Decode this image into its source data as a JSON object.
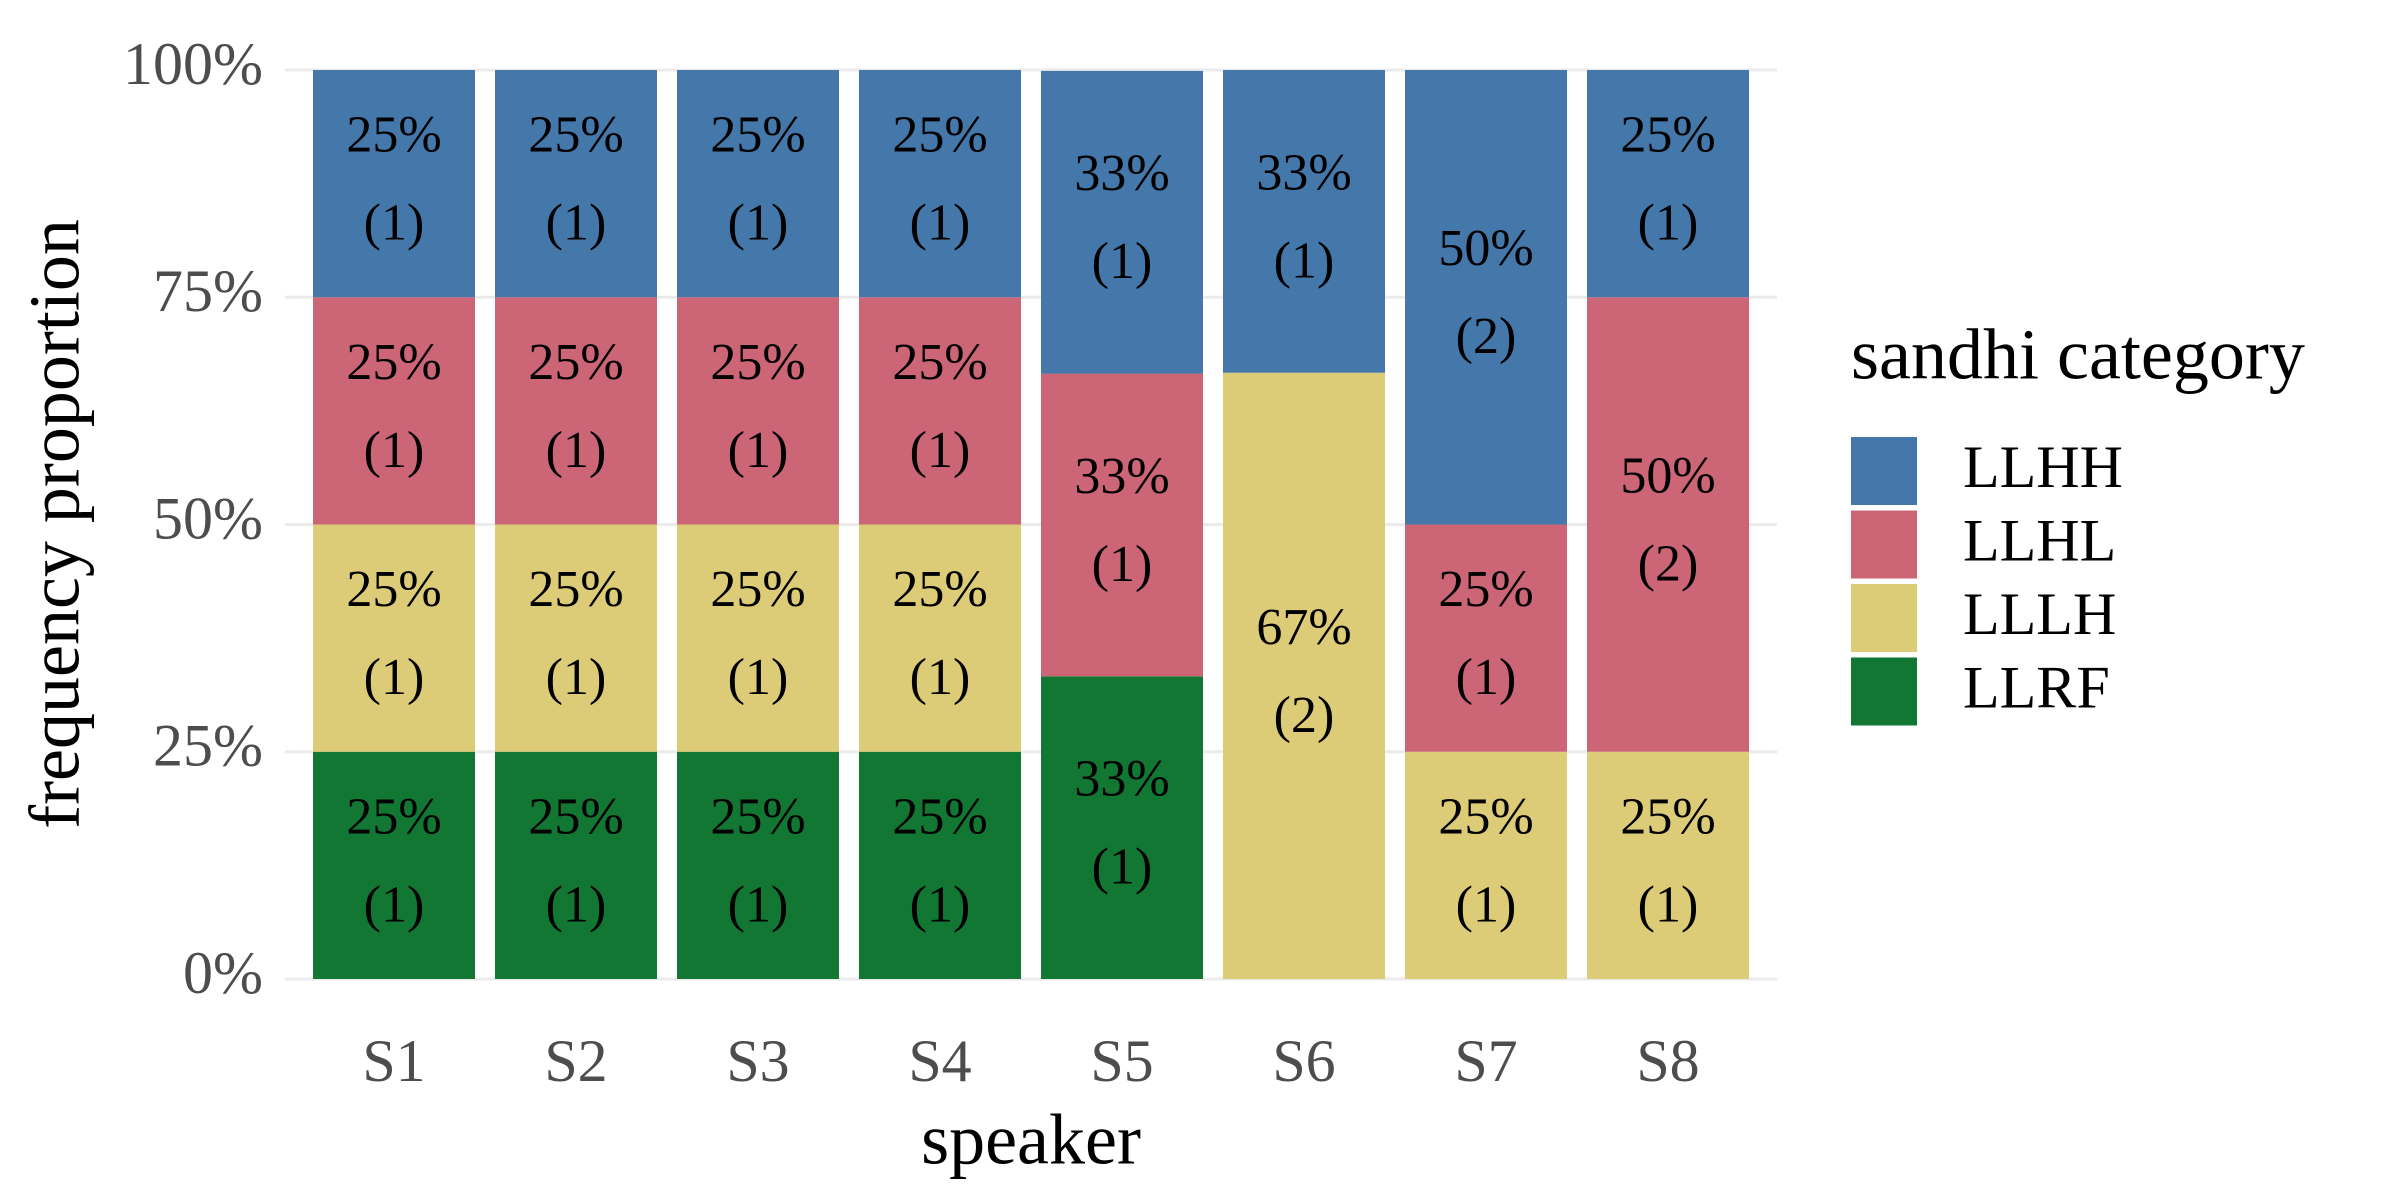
{
  "chart_data": {
    "type": "stacked_bar",
    "x_label": "speaker",
    "y_label": "frequency proportion",
    "legend_title": "sandhi category",
    "categories": [
      "S1",
      "S2",
      "S3",
      "S4",
      "S5",
      "S6",
      "S7",
      "S8"
    ],
    "series": [
      {
        "name": "LLHH",
        "color": "#4477aa",
        "values": [
          25,
          25,
          25,
          25,
          33.3,
          33.3,
          50,
          25
        ],
        "value_labels": [
          "25%",
          "25%",
          "25%",
          "25%",
          "33%",
          "33%",
          "50%",
          "25%"
        ],
        "counts": [
          1,
          1,
          1,
          1,
          1,
          1,
          2,
          1
        ],
        "count_labels": [
          "(1)",
          "(1)",
          "(1)",
          "(1)",
          "(1)",
          "(1)",
          "(2)",
          "(1)"
        ]
      },
      {
        "name": "LLHL",
        "color": "#cc6677",
        "values": [
          25,
          25,
          25,
          25,
          33.3,
          null,
          25,
          50
        ],
        "value_labels": [
          "25%",
          "25%",
          "25%",
          "25%",
          "33%",
          null,
          "25%",
          "50%"
        ],
        "counts": [
          1,
          1,
          1,
          1,
          1,
          null,
          1,
          2
        ],
        "count_labels": [
          "(1)",
          "(1)",
          "(1)",
          "(1)",
          "(1)",
          null,
          "(1)",
          "(2)"
        ]
      },
      {
        "name": "LLLH",
        "color": "#ddcc77",
        "values": [
          25,
          25,
          25,
          25,
          null,
          66.7,
          25,
          25
        ],
        "value_labels": [
          "25%",
          "25%",
          "25%",
          "25%",
          null,
          "67%",
          "25%",
          "25%"
        ],
        "counts": [
          1,
          1,
          1,
          1,
          null,
          2,
          1,
          1
        ],
        "count_labels": [
          "(1)",
          "(1)",
          "(1)",
          "(1)",
          null,
          "(2)",
          "(1)",
          "(1)"
        ]
      },
      {
        "name": "LLRF",
        "color": "#117733",
        "values": [
          25,
          25,
          25,
          25,
          33.3,
          null,
          null,
          null
        ],
        "value_labels": [
          "25%",
          "25%",
          "25%",
          "25%",
          "33%",
          null,
          null,
          null
        ],
        "counts": [
          1,
          1,
          1,
          1,
          1,
          null,
          null,
          null
        ],
        "count_labels": [
          "(1)",
          "(1)",
          "(1)",
          "(1)",
          "(1)",
          null,
          null,
          null
        ]
      }
    ],
    "ylim": [
      0,
      100
    ],
    "yticks": [
      {
        "value": 0,
        "label": "0%"
      },
      {
        "value": 25,
        "label": "25%"
      },
      {
        "value": 50,
        "label": "50%"
      },
      {
        "value": 75,
        "label": "75%"
      },
      {
        "value": 100,
        "label": "100%"
      }
    ],
    "grid": true,
    "legend": "right"
  }
}
